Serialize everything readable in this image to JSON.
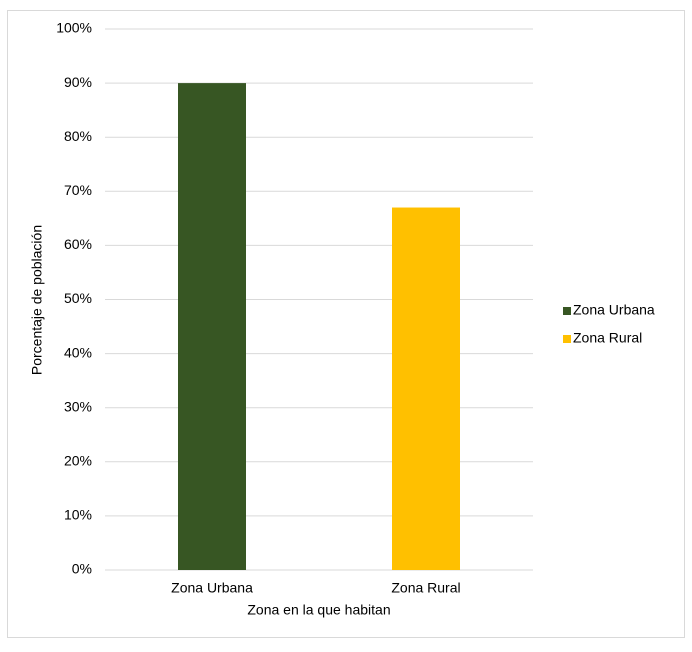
{
  "chart_data": {
    "type": "bar",
    "x_label": "Zona en la que habitan",
    "y_label": "Porcentaje de población",
    "categories": [
      "Zona Urbana",
      "Zona Rural"
    ],
    "series": [
      {
        "name": "Zona Urbana",
        "color": "#375623",
        "values": [
          90,
          null
        ]
      },
      {
        "name": "Zona Rural",
        "color": "#ffc000",
        "values": [
          null,
          67
        ]
      }
    ],
    "ylim": [
      0,
      100
    ],
    "yticks": [
      {
        "value": 0,
        "label": "0%"
      },
      {
        "value": 10,
        "label": "10%"
      },
      {
        "value": 20,
        "label": "20%"
      },
      {
        "value": 30,
        "label": "30%"
      },
      {
        "value": 40,
        "label": "40%"
      },
      {
        "value": 50,
        "label": "50%"
      },
      {
        "value": 60,
        "label": "60%"
      },
      {
        "value": 70,
        "label": "70%"
      },
      {
        "value": 80,
        "label": "80%"
      },
      {
        "value": 90,
        "label": "90%"
      },
      {
        "value": 100,
        "label": "100%"
      }
    ],
    "grid": true,
    "legend": "right"
  }
}
